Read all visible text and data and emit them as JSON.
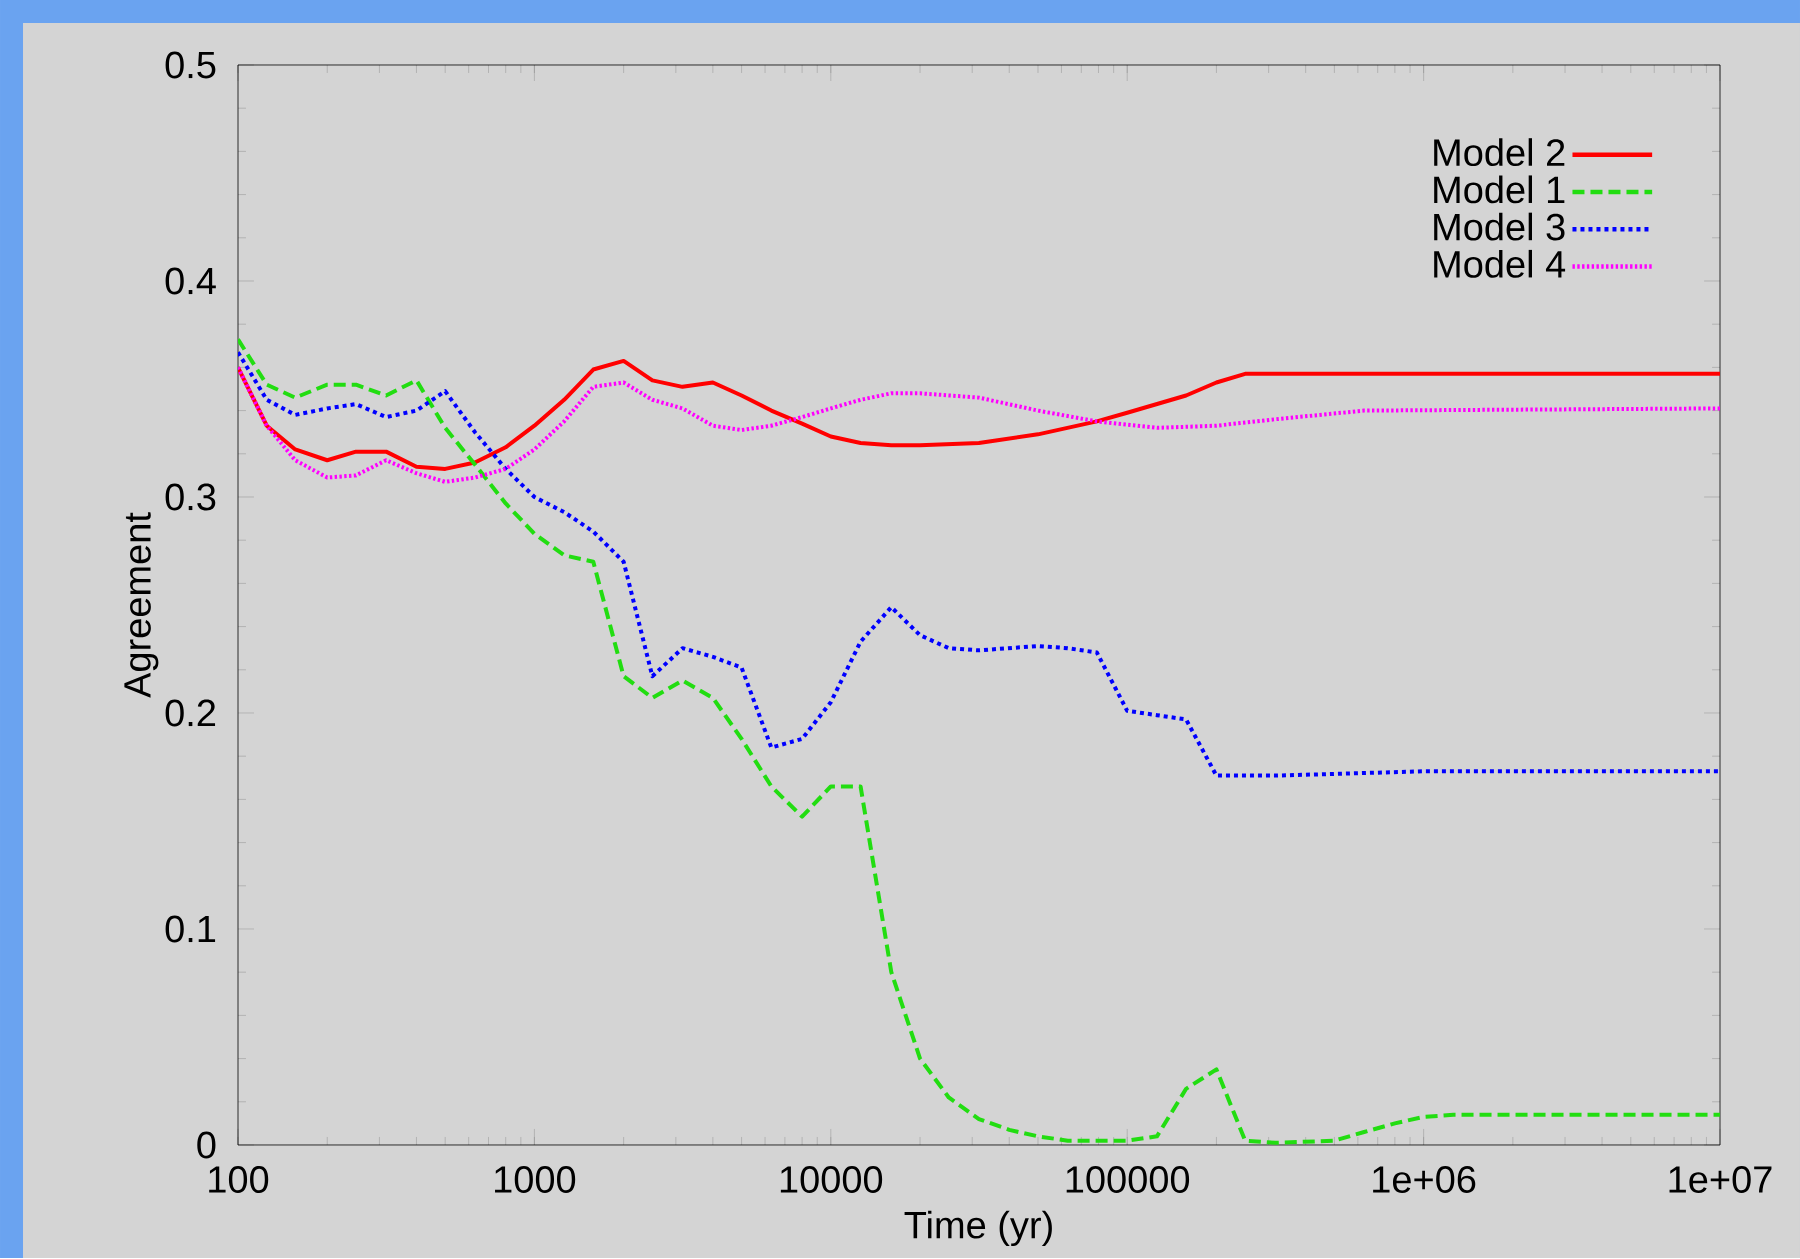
{
  "chart_data": {
    "type": "line",
    "xlabel": "Time (yr)",
    "ylabel": "Agreement",
    "log": "x",
    "grid": false,
    "legend": "top right",
    "marker": "none",
    "xlim": [
      100,
      10000000
    ],
    "ylim": [
      0,
      0.5
    ],
    "xticks": [
      100,
      1000,
      10000,
      100000,
      {
        "value": 1000000,
        "label": "1e+06"
      },
      {
        "value": 10000000,
        "label": "1e+07"
      }
    ],
    "yticks": [
      0,
      0.1,
      0.2,
      0.3,
      0.4,
      0.5
    ],
    "series": [
      {
        "name": "Model 2",
        "color": "#ff0000",
        "line_style": "solid",
        "x": [
          100,
          125,
          156,
          200,
          250,
          316,
          400,
          500,
          630,
          800,
          1000,
          1260,
          1580,
          2000,
          2500,
          3160,
          4000,
          5000,
          6300,
          8000,
          10000,
          12600,
          16000,
          20000,
          31600,
          50000,
          79000,
          100000,
          158000,
          200000,
          250000,
          10000000
        ],
        "values": [
          0.36,
          0.333,
          0.322,
          0.317,
          0.321,
          0.321,
          0.314,
          0.313,
          0.316,
          0.323,
          0.333,
          0.345,
          0.359,
          0.363,
          0.354,
          0.351,
          0.353,
          0.347,
          0.34,
          0.334,
          0.328,
          0.325,
          0.324,
          0.324,
          0.325,
          0.329,
          0.335,
          0.339,
          0.347,
          0.353,
          0.357,
          0.357
        ]
      },
      {
        "name": "Model 1",
        "color": "#22dd11",
        "line_style": "dashed",
        "x": [
          100,
          125,
          156,
          200,
          250,
          316,
          400,
          500,
          630,
          800,
          1000,
          1260,
          1580,
          2000,
          2500,
          3160,
          4000,
          5000,
          6300,
          8000,
          10000,
          12600,
          16000,
          20000,
          25000,
          31600,
          40000,
          50000,
          63000,
          100000,
          126000,
          158000,
          200000,
          250000,
          316000,
          500000,
          630000,
          800000,
          1000000,
          1260000,
          10000000
        ],
        "values": [
          0.373,
          0.352,
          0.346,
          0.352,
          0.352,
          0.347,
          0.354,
          0.332,
          0.315,
          0.297,
          0.283,
          0.273,
          0.27,
          0.217,
          0.207,
          0.215,
          0.207,
          0.188,
          0.166,
          0.152,
          0.166,
          0.166,
          0.08,
          0.04,
          0.022,
          0.012,
          0.007,
          0.004,
          0.002,
          0.002,
          0.004,
          0.026,
          0.035,
          0.002,
          0.001,
          0.002,
          0.006,
          0.01,
          0.013,
          0.014,
          0.014
        ]
      },
      {
        "name": "Model 3",
        "color": "#0000ff",
        "line_style": "dotted",
        "x": [
          100,
          125,
          156,
          200,
          250,
          316,
          400,
          500,
          630,
          800,
          1000,
          1260,
          1580,
          2000,
          2500,
          3160,
          4000,
          5000,
          6300,
          8000,
          10000,
          12600,
          16000,
          20000,
          25000,
          31600,
          50000,
          63000,
          79000,
          100000,
          126000,
          158000,
          200000,
          316000,
          1000000,
          10000000
        ],
        "values": [
          0.367,
          0.345,
          0.338,
          0.341,
          0.343,
          0.337,
          0.34,
          0.349,
          0.33,
          0.313,
          0.3,
          0.293,
          0.284,
          0.27,
          0.217,
          0.23,
          0.226,
          0.221,
          0.184,
          0.188,
          0.205,
          0.233,
          0.249,
          0.236,
          0.23,
          0.229,
          0.231,
          0.23,
          0.228,
          0.201,
          0.199,
          0.197,
          0.171,
          0.171,
          0.173,
          0.173
        ]
      },
      {
        "name": "Model 4",
        "color": "#ff00ff",
        "line_style": "dotted",
        "x": [
          100,
          125,
          156,
          200,
          250,
          316,
          400,
          500,
          630,
          800,
          1000,
          1260,
          1580,
          2000,
          2500,
          3160,
          4000,
          5000,
          6300,
          8000,
          10000,
          12600,
          16000,
          20000,
          31600,
          50000,
          79000,
          126000,
          200000,
          316000,
          630000,
          10000000
        ],
        "values": [
          0.36,
          0.333,
          0.317,
          0.309,
          0.31,
          0.317,
          0.311,
          0.307,
          0.309,
          0.313,
          0.322,
          0.335,
          0.351,
          0.353,
          0.345,
          0.341,
          0.333,
          0.331,
          0.333,
          0.337,
          0.341,
          0.345,
          0.348,
          0.348,
          0.346,
          0.34,
          0.335,
          0.332,
          0.333,
          0.336,
          0.34,
          0.341
        ]
      }
    ]
  }
}
